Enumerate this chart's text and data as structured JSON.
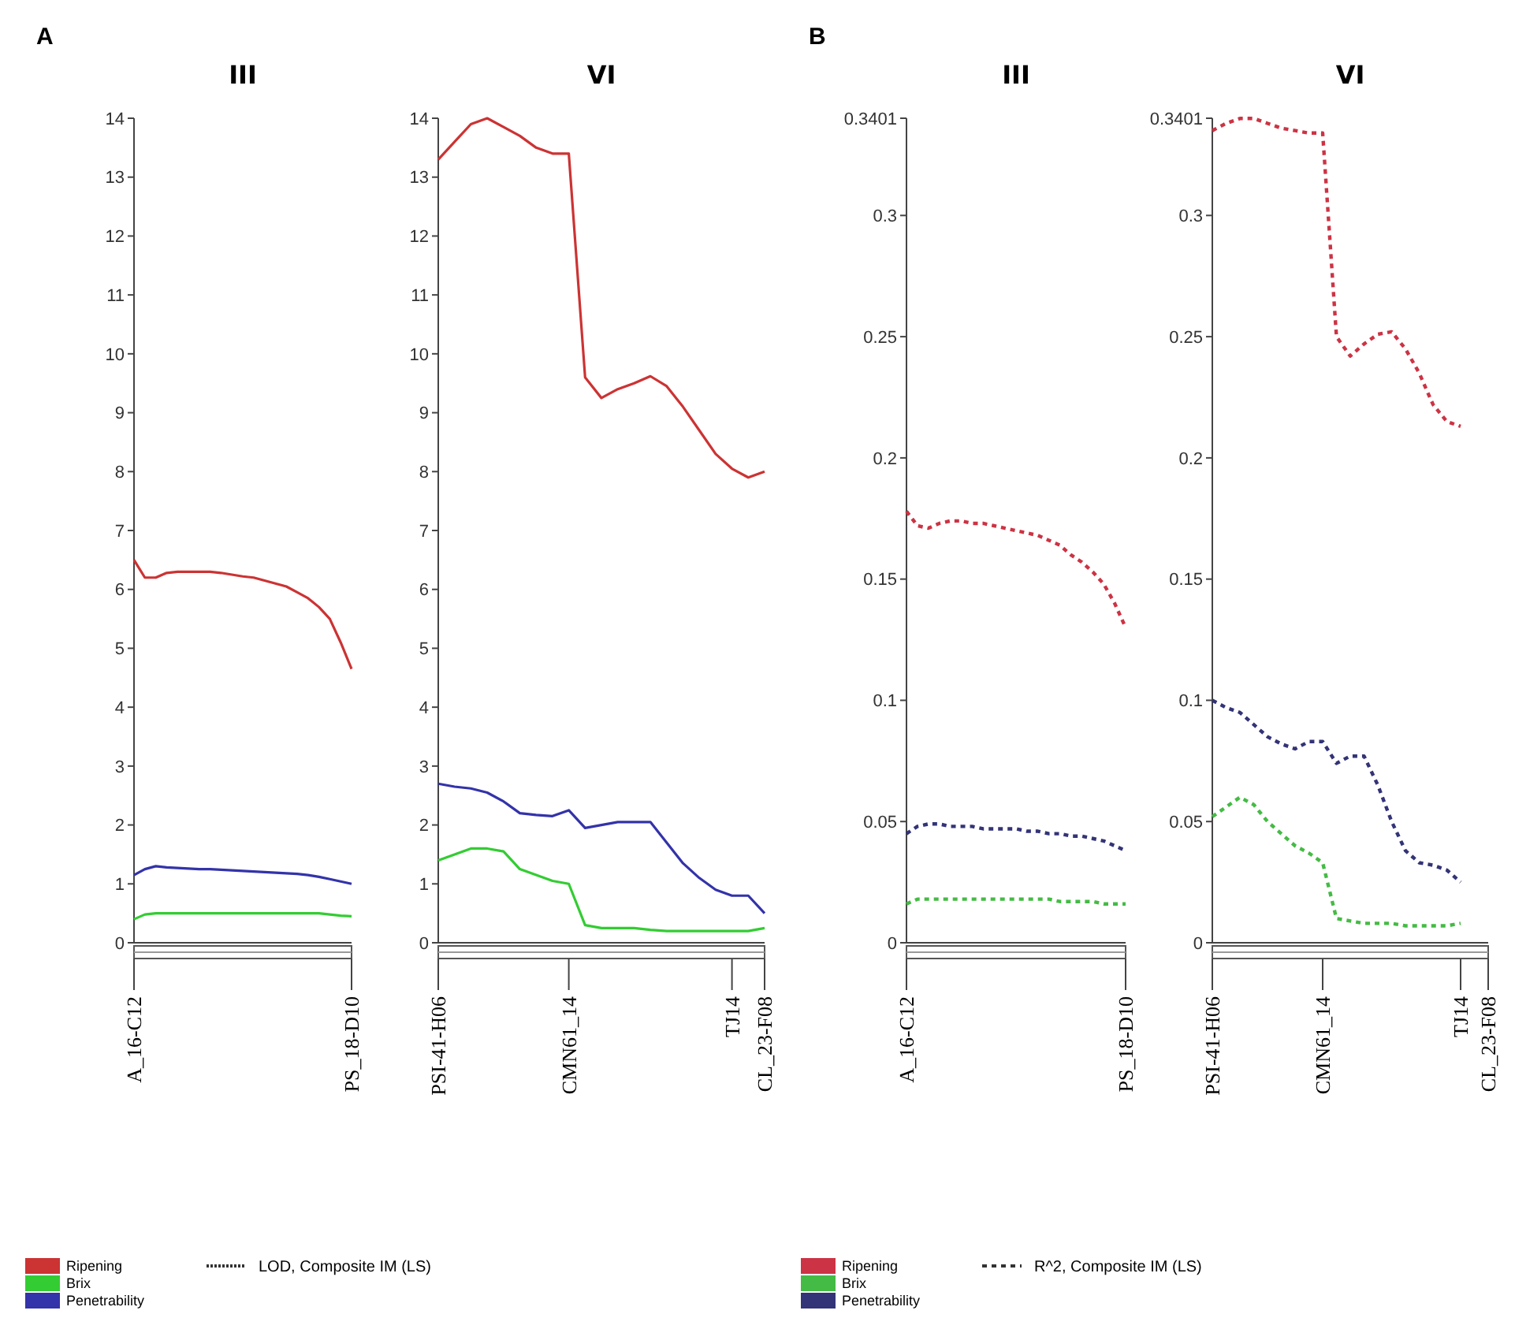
{
  "chart_data": [
    {
      "type": "line",
      "title": "III",
      "annotations": [
        "A"
      ],
      "categories": [
        "A_16-C12",
        null,
        null,
        null,
        null,
        null,
        null,
        null,
        null,
        null,
        null,
        null,
        null,
        null,
        null,
        null,
        null,
        null,
        null,
        null,
        "PS_18-D10"
      ],
      "ylim": [
        0,
        14
      ],
      "yticks": [
        0,
        1,
        2,
        3,
        4,
        5,
        6,
        7,
        8,
        9,
        10,
        11,
        12,
        13,
        14
      ],
      "legend": "bottom",
      "legend_title": "LOD, Composite IM (LS)",
      "line_style": "solid",
      "marker": "none",
      "series": [
        {
          "name": "Ripening",
          "color": "#cc3333",
          "values": [
            6.5,
            6.2,
            6.2,
            6.28,
            6.3,
            6.3,
            6.3,
            6.3,
            6.28,
            6.25,
            6.22,
            6.2,
            6.15,
            6.1,
            6.05,
            5.95,
            5.85,
            5.7,
            5.5,
            5.1,
            4.65
          ]
        },
        {
          "name": "Brix",
          "color": "#33cc33",
          "values": [
            0.4,
            0.48,
            0.5,
            0.5,
            0.5,
            0.5,
            0.5,
            0.5,
            0.5,
            0.5,
            0.5,
            0.5,
            0.5,
            0.5,
            0.5,
            0.5,
            0.5,
            0.5,
            0.48,
            0.46,
            0.45
          ]
        },
        {
          "name": "Penetrability",
          "color": "#3333aa",
          "values": [
            1.15,
            1.25,
            1.3,
            1.28,
            1.27,
            1.26,
            1.25,
            1.25,
            1.24,
            1.23,
            1.22,
            1.21,
            1.2,
            1.19,
            1.18,
            1.17,
            1.15,
            1.12,
            1.08,
            1.04,
            1.0
          ]
        }
      ]
    },
    {
      "type": "line",
      "title": "VI",
      "categories": [
        "PSI-41-H06",
        null,
        null,
        null,
        null,
        null,
        null,
        null,
        "CMN61_14",
        null,
        null,
        null,
        null,
        null,
        null,
        null,
        null,
        null,
        "TJ14",
        null,
        "CL_23-F08"
      ],
      "ylim": [
        0,
        14
      ],
      "yticks": [
        0,
        1,
        2,
        3,
        4,
        5,
        6,
        7,
        8,
        9,
        10,
        11,
        12,
        13,
        14
      ],
      "line_style": "solid",
      "marker": "none",
      "series": [
        {
          "color": "#cc3333",
          "values": [
            13.3,
            13.6,
            13.9,
            14.0,
            13.85,
            13.7,
            13.5,
            13.4,
            13.4,
            9.6,
            9.25,
            9.4,
            9.5,
            9.62,
            9.45,
            9.1,
            8.7,
            8.3,
            8.05,
            7.9,
            8.0
          ]
        },
        {
          "color": "#33cc33",
          "values": [
            1.4,
            1.5,
            1.6,
            1.6,
            1.55,
            1.25,
            1.15,
            1.05,
            1.0,
            0.3,
            0.25,
            0.25,
            0.25,
            0.22,
            0.2,
            0.2,
            0.2,
            0.2,
            0.2,
            0.2,
            0.25
          ]
        },
        {
          "color": "#3333aa",
          "values": [
            2.7,
            2.65,
            2.62,
            2.55,
            2.4,
            2.2,
            2.17,
            2.15,
            2.25,
            1.95,
            2.0,
            2.05,
            2.05,
            2.05,
            1.7,
            1.35,
            1.1,
            0.9,
            0.8,
            0.8,
            0.5
          ]
        }
      ]
    },
    {
      "type": "line",
      "title": "III",
      "annotations": [
        "B"
      ],
      "categories": [
        "A_16-C12",
        null,
        null,
        null,
        null,
        null,
        null,
        null,
        null,
        null,
        null,
        null,
        null,
        null,
        null,
        null,
        null,
        null,
        null,
        null,
        "PS_18-D10"
      ],
      "ylim": [
        0,
        0.3401
      ],
      "yticks": [
        0,
        0.05,
        0.1,
        0.15,
        0.2,
        0.25,
        0.3,
        0.3401
      ],
      "legend": "bottom",
      "legend_title": "R^2, Composite IM (LS)",
      "line_style": "dashed",
      "marker": "none",
      "series": [
        {
          "name": "Ripening",
          "color": "#cc3344",
          "values": [
            0.178,
            0.172,
            0.171,
            0.173,
            0.174,
            0.174,
            0.173,
            0.173,
            0.172,
            0.171,
            0.17,
            0.169,
            0.168,
            0.166,
            0.164,
            0.16,
            0.157,
            0.153,
            0.148,
            0.14,
            0.13
          ]
        },
        {
          "name": "Brix",
          "color": "#44bb44",
          "values": [
            0.016,
            0.018,
            0.018,
            0.018,
            0.018,
            0.018,
            0.018,
            0.018,
            0.018,
            0.018,
            0.018,
            0.018,
            0.018,
            0.018,
            0.017,
            0.017,
            0.017,
            0.017,
            0.016,
            0.016,
            0.016
          ]
        },
        {
          "name": "Penetrability",
          "color": "#333377",
          "values": [
            0.045,
            0.048,
            0.049,
            0.049,
            0.048,
            0.048,
            0.048,
            0.047,
            0.047,
            0.047,
            0.047,
            0.046,
            0.046,
            0.045,
            0.045,
            0.044,
            0.044,
            0.043,
            0.042,
            0.04,
            0.038
          ]
        }
      ]
    },
    {
      "type": "line",
      "title": "VI",
      "categories": [
        "PSI-41-H06",
        null,
        null,
        null,
        null,
        null,
        null,
        null,
        "CMN61_14",
        null,
        null,
        null,
        null,
        null,
        null,
        null,
        null,
        null,
        "TJ14",
        null,
        "CL_23-F08"
      ],
      "ylim": [
        0,
        0.3401
      ],
      "yticks": [
        0,
        0.05,
        0.1,
        0.15,
        0.2,
        0.25,
        0.3,
        0.3401
      ],
      "line_style": "dashed",
      "marker": "none",
      "series": [
        {
          "color": "#cc3344",
          "values": [
            0.335,
            0.338,
            0.34,
            0.34,
            0.338,
            0.336,
            0.335,
            0.334,
            0.334,
            0.25,
            0.242,
            0.247,
            0.251,
            0.252,
            0.245,
            0.235,
            0.222,
            0.215,
            0.213,
            null,
            null
          ]
        },
        {
          "color": "#44bb44",
          "values": [
            0.052,
            0.056,
            0.06,
            0.057,
            0.05,
            0.045,
            0.04,
            0.037,
            0.033,
            0.01,
            0.009,
            0.008,
            0.008,
            0.008,
            0.007,
            0.007,
            0.007,
            0.007,
            0.008,
            null,
            null
          ]
        },
        {
          "color": "#333377",
          "values": [
            0.1,
            0.097,
            0.095,
            0.09,
            0.085,
            0.082,
            0.08,
            0.083,
            0.083,
            0.074,
            0.077,
            0.077,
            0.065,
            0.05,
            0.038,
            0.033,
            0.032,
            0.03,
            0.025,
            null,
            null
          ]
        }
      ]
    }
  ]
}
